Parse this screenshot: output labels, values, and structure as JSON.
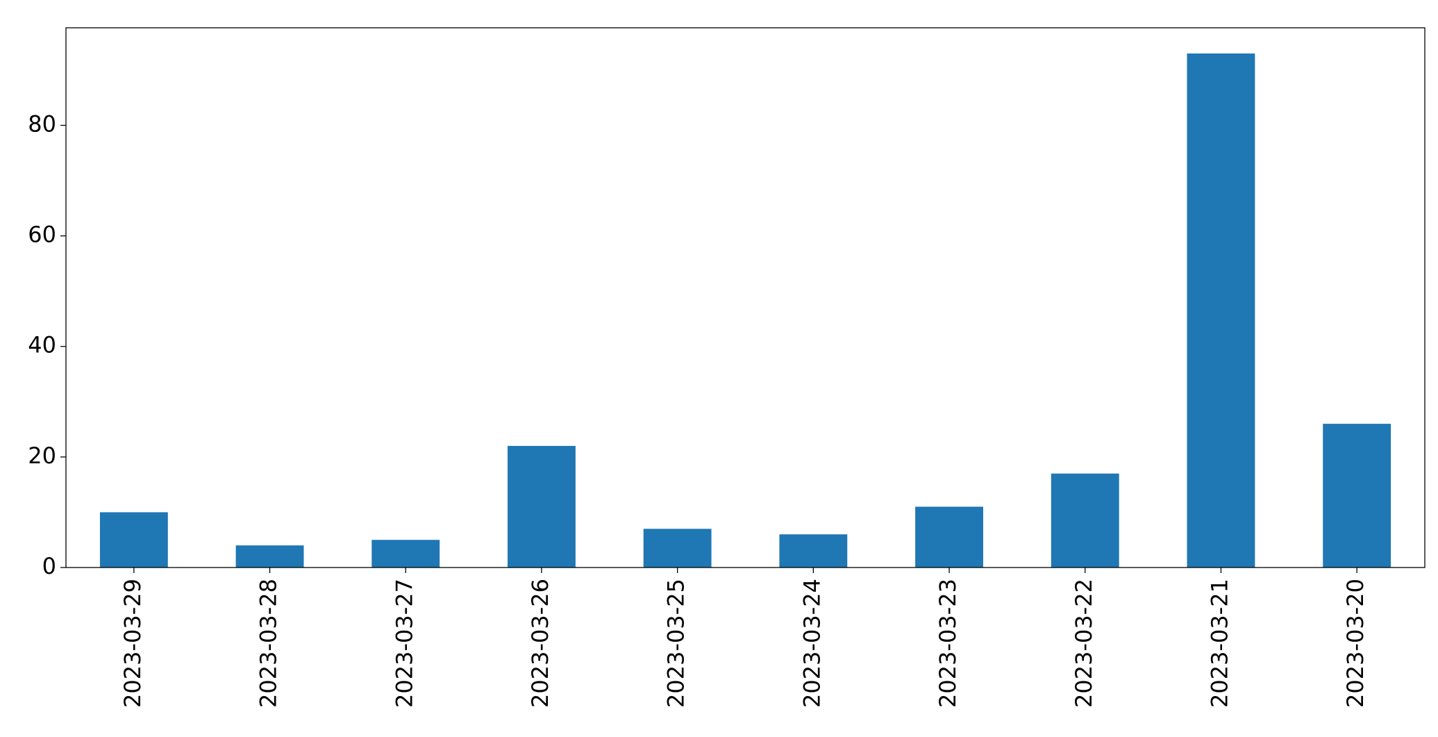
{
  "chart_data": {
    "type": "bar",
    "categories": [
      "2023-03-29",
      "2023-03-28",
      "2023-03-27",
      "2023-03-26",
      "2023-03-25",
      "2023-03-24",
      "2023-03-23",
      "2023-03-22",
      "2023-03-21",
      "2023-03-20"
    ],
    "values": [
      10,
      4,
      5,
      22,
      7,
      6,
      11,
      17,
      93,
      26
    ],
    "color": "#1f77b4",
    "ylim": [
      0,
      97.65
    ],
    "yticks": [
      0,
      20,
      40,
      60,
      80
    ],
    "grid": false
  }
}
